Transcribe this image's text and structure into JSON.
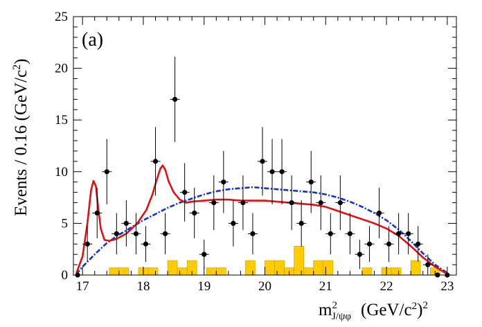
{
  "chart_data": {
    "type": "scatter",
    "panel_label": "(a)",
    "ylabel": "Events / 0.16 (GeV/c",
    "ylabel_sup": "2",
    "ylabel_close": ")",
    "xlabel_main": "m",
    "xlabel_sup": "2",
    "xlabel_sub": "J/ψφ",
    "xlabel_units": "(GeV/c",
    "xlabel_units_sup": "2",
    "xlabel_units_close": ")",
    "xlabel_units_outer_sup": "2",
    "xlim": [
      16.85,
      23.15
    ],
    "ylim": [
      0,
      25
    ],
    "x_ticks": [
      17,
      18,
      19,
      20,
      21,
      22,
      23
    ],
    "x_tick_labels": [
      "17",
      "18",
      "19",
      "20",
      "21",
      "22",
      "23"
    ],
    "y_ticks": [
      0,
      5,
      10,
      15,
      20,
      25
    ],
    "y_tick_labels": [
      "0",
      "5",
      "10",
      "15",
      "20",
      "25"
    ],
    "bin_width": 0.16,
    "series": [
      {
        "name": "data",
        "kind": "points-with-errors",
        "color": "#000000",
        "x": [
          16.92,
          17.08,
          17.24,
          17.4,
          17.56,
          17.72,
          17.88,
          18.04,
          18.2,
          18.36,
          18.52,
          18.68,
          18.84,
          19.0,
          19.16,
          19.32,
          19.48,
          19.64,
          19.8,
          19.96,
          20.12,
          20.28,
          20.44,
          20.6,
          20.76,
          20.92,
          21.08,
          21.24,
          21.4,
          21.56,
          21.72,
          21.88,
          22.04,
          22.2,
          22.36,
          22.52,
          22.68,
          22.84,
          23.0
        ],
        "y": [
          0,
          3,
          6,
          10,
          4,
          5,
          4,
          3,
          11,
          4,
          17,
          8,
          6,
          2,
          7,
          9,
          5,
          7,
          4,
          11,
          10,
          10,
          7,
          5,
          9,
          7,
          4,
          7,
          4,
          2,
          3,
          6,
          3,
          4,
          4,
          3,
          1,
          0,
          0
        ]
      },
      {
        "name": "fit",
        "kind": "line",
        "color": "#e01010",
        "x": [
          16.9,
          17.0,
          17.08,
          17.14,
          17.18,
          17.22,
          17.26,
          17.3,
          17.36,
          17.44,
          17.56,
          17.72,
          17.9,
          18.05,
          18.15,
          18.22,
          18.28,
          18.32,
          18.36,
          18.42,
          18.5,
          18.6,
          18.7,
          18.8,
          19.0,
          19.2,
          19.4,
          19.6,
          19.8,
          20.0,
          20.2,
          20.4,
          20.6,
          20.8,
          21.0,
          21.2,
          21.4,
          21.6,
          21.8,
          22.0,
          22.2,
          22.4,
          22.6,
          22.8,
          23.0
        ],
        "y": [
          0.2,
          1.8,
          5.0,
          8.2,
          9.1,
          8.6,
          6.4,
          4.5,
          3.4,
          3.3,
          3.5,
          4.0,
          5.0,
          6.3,
          7.8,
          9.2,
          10.3,
          10.6,
          10.2,
          9.0,
          8.0,
          7.3,
          7.0,
          7.1,
          7.2,
          7.3,
          7.3,
          7.2,
          7.2,
          7.2,
          7.1,
          7.0,
          6.9,
          6.8,
          6.6,
          6.2,
          5.8,
          5.4,
          5.0,
          4.5,
          3.8,
          2.8,
          1.7,
          0.8,
          0.1
        ]
      },
      {
        "name": "background",
        "kind": "dashed-line",
        "color": "#1030d8",
        "x": [
          16.9,
          17.0,
          17.2,
          17.4,
          17.6,
          17.8,
          18.0,
          18.2,
          18.4,
          18.6,
          18.8,
          19.0,
          19.2,
          19.4,
          19.6,
          19.8,
          20.0,
          20.2,
          20.4,
          20.6,
          20.8,
          21.0,
          21.2,
          21.4,
          21.6,
          21.8,
          22.0,
          22.2,
          22.4,
          22.6,
          22.8,
          23.0
        ],
        "y": [
          0.1,
          0.8,
          2.0,
          3.1,
          3.9,
          4.6,
          5.3,
          5.9,
          6.5,
          7.0,
          7.4,
          7.8,
          8.1,
          8.3,
          8.4,
          8.5,
          8.4,
          8.3,
          8.2,
          8.1,
          8.0,
          7.8,
          7.5,
          7.1,
          6.6,
          6.0,
          5.3,
          4.4,
          3.3,
          2.1,
          1.0,
          0.2
        ]
      },
      {
        "name": "sideband",
        "kind": "histogram",
        "color": "#ffcc00",
        "bin_edges_low": [
          17.44,
          17.6,
          17.92,
          18.08,
          18.4,
          18.56,
          18.72,
          19.04,
          19.2,
          19.68,
          19.84,
          20.0,
          20.16,
          20.32,
          20.48,
          20.64,
          20.8,
          20.96,
          21.12,
          21.44,
          21.6,
          21.76,
          21.92,
          22.08,
          22.24,
          22.4,
          22.72
        ],
        "values": [
          0.7,
          0.7,
          0.7,
          0.7,
          1.4,
          0.7,
          1.4,
          0.7,
          0.7,
          1.4,
          0,
          1.4,
          1.4,
          0.7,
          2.8,
          0.7,
          1.4,
          1.4,
          0,
          0,
          0.7,
          0,
          0.7,
          0.7,
          0,
          1.4,
          0.7
        ]
      }
    ]
  }
}
